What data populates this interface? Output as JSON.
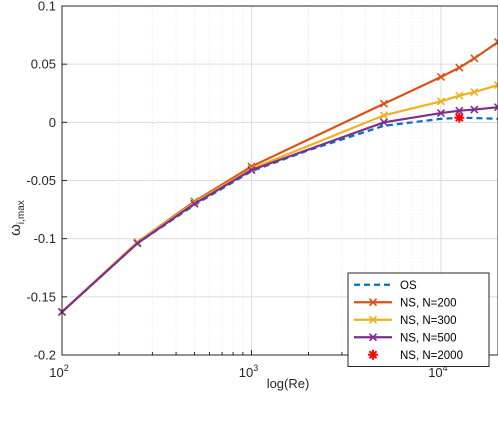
{
  "chart_data": {
    "type": "line",
    "title": "",
    "xlabel": "log(Re)",
    "ylabel": "ω",
    "ylabel_subscript": "i,max",
    "xscale": "log",
    "xlim": [
      100,
      20000
    ],
    "ylim": [
      -0.2,
      0.1
    ],
    "grid": true,
    "legend_position": "bottom-right",
    "x_ticks": [
      {
        "value": 100,
        "base": "10",
        "exp": "2"
      },
      {
        "value": 1000,
        "base": "10",
        "exp": "3"
      },
      {
        "value": 10000,
        "base": "10",
        "exp": "4"
      }
    ],
    "y_ticks": [
      {
        "value": 0.1,
        "label": "0.1"
      },
      {
        "value": 0.05,
        "label": "0.05"
      },
      {
        "value": 0,
        "label": "0"
      },
      {
        "value": -0.05,
        "label": "-0.05"
      },
      {
        "value": -0.1,
        "label": "-0.1"
      },
      {
        "value": -0.15,
        "label": "-0.15"
      },
      {
        "value": -0.2,
        "label": "-0.2"
      }
    ],
    "series": [
      {
        "name": "OS",
        "color": "#0072BD",
        "line": "dashed",
        "marker": "none",
        "x": [
          100,
          250,
          500,
          1000,
          2000,
          5000,
          10000,
          13000,
          20000
        ],
        "y": [
          -0.163,
          -0.104,
          -0.071,
          -0.042,
          -0.024,
          -0.003,
          0.003,
          0.004,
          0.003
        ]
      },
      {
        "name": "NS, N=200",
        "color": "#D95319",
        "line": "solid",
        "marker": "x",
        "x": [
          100,
          250,
          500,
          1000,
          5000,
          10000,
          12500,
          15000,
          20000
        ],
        "y": [
          -0.163,
          -0.103,
          -0.068,
          -0.038,
          0.016,
          0.039,
          0.047,
          0.055,
          0.069
        ]
      },
      {
        "name": "NS, N=300",
        "color": "#EDB120",
        "line": "solid",
        "marker": "x",
        "x": [
          100,
          250,
          500,
          1000,
          5000,
          10000,
          12500,
          15000,
          20000
        ],
        "y": [
          -0.163,
          -0.103,
          -0.069,
          -0.04,
          0.006,
          0.018,
          0.023,
          0.026,
          0.032
        ]
      },
      {
        "name": "NS, N=500",
        "color": "#7E2F8E",
        "line": "solid",
        "marker": "x",
        "x": [
          100,
          250,
          500,
          1000,
          5000,
          10000,
          12500,
          15000,
          20000
        ],
        "y": [
          -0.163,
          -0.104,
          -0.07,
          -0.041,
          0.0,
          0.008,
          0.01,
          0.011,
          0.013
        ]
      },
      {
        "name": "NS, N=2000",
        "color": "#FF0000",
        "line": "none",
        "marker": "asterisk",
        "x": [
          12500
        ],
        "y": [
          0.004
        ]
      }
    ]
  }
}
